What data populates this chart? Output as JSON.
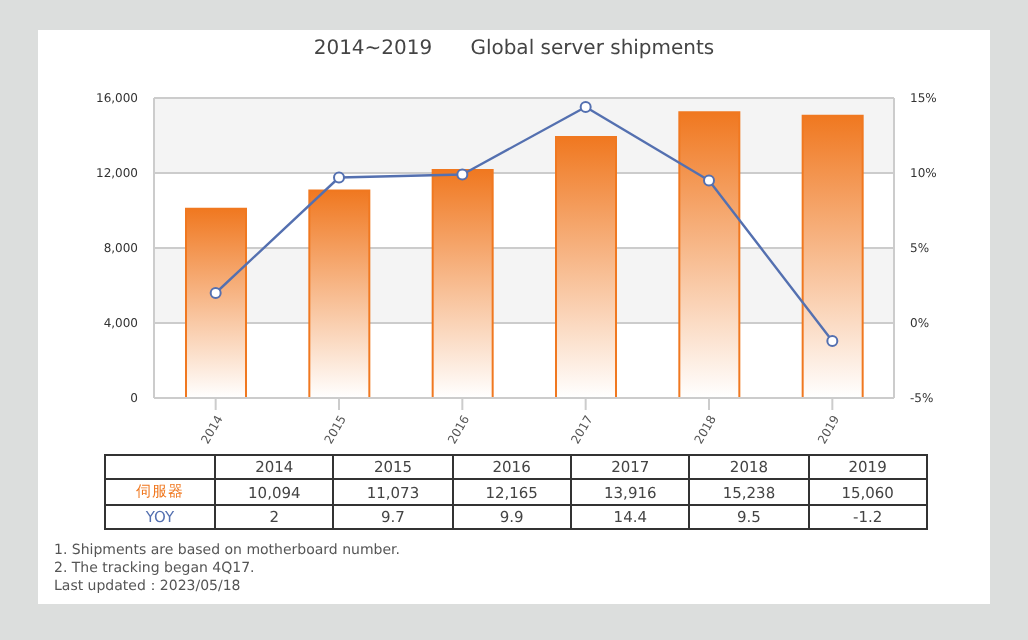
{
  "chart_data": {
    "type": "bar",
    "title": "2014~2019      Global server shipments",
    "categories": [
      "2014",
      "2015",
      "2016",
      "2017",
      "2018",
      "2019"
    ],
    "series": [
      {
        "name": "伺服器",
        "color": "#f07820",
        "values": [
          10094,
          11073,
          12165,
          13916,
          15238,
          15060
        ],
        "value_labels": [
          "10,094",
          "11,073",
          "12,165",
          "13,916",
          "15,238",
          "15,060"
        ]
      },
      {
        "name": "YOY",
        "type": "line",
        "axis": "y2",
        "color": "#5470b0",
        "values": [
          2,
          9.7,
          9.9,
          14.4,
          9.5,
          -1.2
        ],
        "value_labels": [
          "2",
          "9.7",
          "9.9",
          "14.4",
          "9.5",
          "-1.2"
        ]
      }
    ],
    "ylim": [
      0,
      16000
    ],
    "yticks": [
      {
        "value": 0,
        "label": "0"
      },
      {
        "value": 4000,
        "label": "4,000"
      },
      {
        "value": 8000,
        "label": "8,000"
      },
      {
        "value": 12000,
        "label": "12,000"
      },
      {
        "value": 16000,
        "label": "16,000"
      }
    ],
    "y2lim": [
      -5,
      15
    ],
    "y2ticks": [
      {
        "value": -5,
        "label": "-5%"
      },
      {
        "value": 0,
        "label": "0%"
      },
      {
        "value": 5,
        "label": "5%"
      },
      {
        "value": 10,
        "label": "10%"
      },
      {
        "value": 15,
        "label": "15%"
      }
    ],
    "grid": "y",
    "marker": "circle",
    "legend": false,
    "annotations": [
      "1. Shipments are based on motherboard number.",
      "2. The tracking began 4Q17.",
      "Last updated：2023/05/18"
    ]
  }
}
